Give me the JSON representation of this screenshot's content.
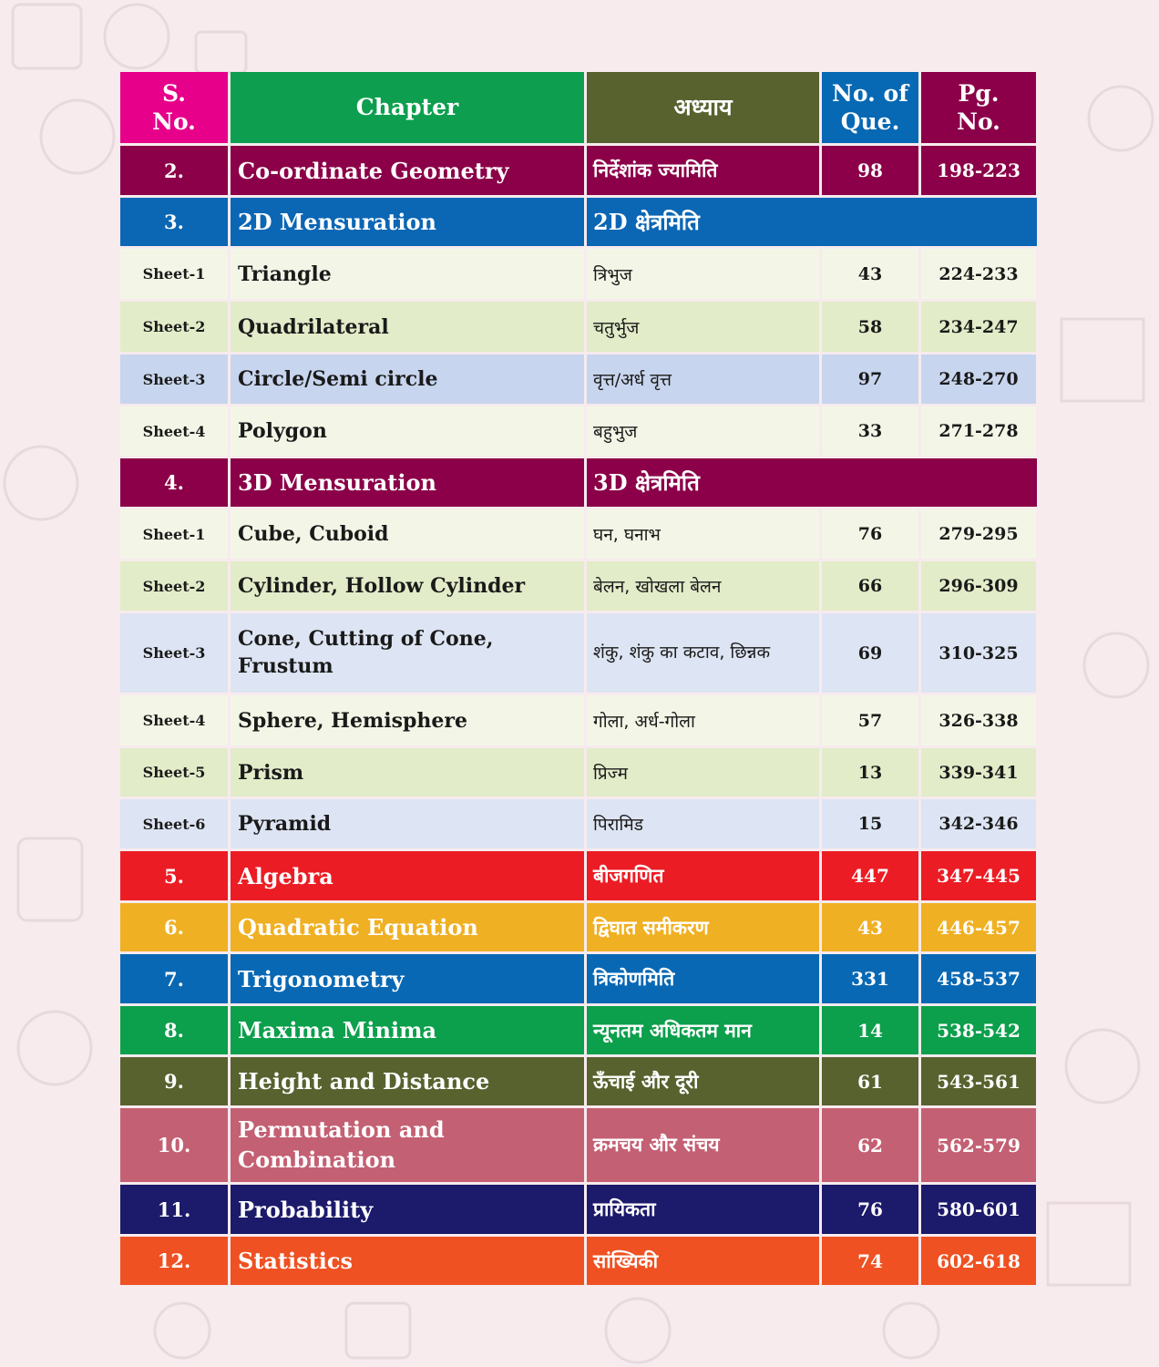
{
  "header": {
    "sno": "S. No.",
    "chapter": "Chapter",
    "hindi": "अध्याय",
    "questions": "No. of Que.",
    "page": "Pg. No."
  },
  "colors": {
    "header_sno": "#e6008a",
    "header_chapter": "#0d9f4f",
    "header_hindi": "#57622f",
    "header_que": "#0768b3",
    "header_pg": "#8b0048",
    "sheet_light": "#f3f6e6",
    "sheet_green": "#e2ecc9",
    "sheet_blue": "#c8d5ee",
    "sheet_lavender": "#dde4f3",
    "background": "#f7ebee"
  },
  "rows": [
    {
      "sno": "2.",
      "chapter": "Co-ordinate Geometry",
      "hindi": "निर्देशांक ज्यामिति",
      "que": "98",
      "pg": "198-223",
      "color": "#8b0048"
    },
    {
      "sno": "3.",
      "chapter": "2D Mensuration",
      "hindi": "2D क्षेत्रमिति",
      "color": "#0b66b4"
    },
    {
      "sno": "Sheet-1",
      "chapter": "Triangle",
      "hindi": "त्रिभुज",
      "que": "43",
      "pg": "224-233",
      "color": "#f3f6e6"
    },
    {
      "sno": "Sheet-2",
      "chapter": "Quadrilateral",
      "hindi": "चतुर्भुज",
      "que": "58",
      "pg": "234-247",
      "color": "#e2ecc9"
    },
    {
      "sno": "Sheet-3",
      "chapter": "Circle/Semi circle",
      "hindi": "वृत्त/अर्ध वृत्त",
      "que": "97",
      "pg": "248-270",
      "color": "#c8d5ee"
    },
    {
      "sno": "Sheet-4",
      "chapter": "Polygon",
      "hindi": "बहुभुज",
      "que": "33",
      "pg": "271-278",
      "color": "#f3f6e6"
    },
    {
      "sno": "4.",
      "chapter": "3D Mensuration",
      "hindi": "3D क्षेत्रमिति",
      "color": "#8b0048"
    },
    {
      "sno": "Sheet-1",
      "chapter": "Cube, Cuboid",
      "hindi": "घन, घनाभ",
      "que": "76",
      "pg": "279-295",
      "color": "#f3f6e6"
    },
    {
      "sno": "Sheet-2",
      "chapter": "Cylinder, Hollow Cylinder",
      "hindi": "बेलन, खोखला बेलन",
      "que": "66",
      "pg": "296-309",
      "color": "#e2ecc9"
    },
    {
      "sno": "Sheet-3",
      "chapter": "Cone, Cutting of Cone, Frustum",
      "hindi": "शंकु, शंकु का कटाव, छिन्नक",
      "que": "69",
      "pg": "310-325",
      "color": "#dde4f3"
    },
    {
      "sno": "Sheet-4",
      "chapter": "Sphere, Hemisphere",
      "hindi": "गोला, अर्ध-गोला",
      "que": "57",
      "pg": "326-338",
      "color": "#f3f6e6"
    },
    {
      "sno": "Sheet-5",
      "chapter": "Prism",
      "hindi": "प्रिज्म",
      "que": "13",
      "pg": "339-341",
      "color": "#e2ecc9"
    },
    {
      "sno": "Sheet-6",
      "chapter": "Pyramid",
      "hindi": "पिरामिड",
      "que": "15",
      "pg": "342-346",
      "color": "#dde4f3"
    },
    {
      "sno": "5.",
      "chapter": "Algebra",
      "hindi": "बीजगणित",
      "que": "447",
      "pg": "347-445",
      "color": "#ec1c24"
    },
    {
      "sno": "6.",
      "chapter": "Quadratic Equation",
      "hindi": "द्विघात समीकरण",
      "que": "43",
      "pg": "446-457",
      "color": "#f0b023"
    },
    {
      "sno": "7.",
      "chapter": "Trigonometry",
      "hindi": "त्रिकोणमिति",
      "que": "331",
      "pg": "458-537",
      "color": "#0868b4"
    },
    {
      "sno": "8.",
      "chapter": "Maxima Minima",
      "hindi": "न्यूनतम अधिकतम मान",
      "que": "14",
      "pg": "538-542",
      "color": "#0c9f4c"
    },
    {
      "sno": "9.",
      "chapter": "Height and Distance",
      "hindi": "ऊँचाई और दूरी",
      "que": "61",
      "pg": "543-561",
      "color": "#57622f"
    },
    {
      "sno": "10.",
      "chapter": "Permutation and Combination",
      "hindi": "क्रमचय और संचय",
      "que": "62",
      "pg": "562-579",
      "color": "#c46073"
    },
    {
      "sno": "11.",
      "chapter": "Probability",
      "hindi": "प्रायिकता",
      "que": "76",
      "pg": "580-601",
      "color": "#1c1a6a"
    },
    {
      "sno": "12.",
      "chapter": "Statistics",
      "hindi": "सांख्यिकी",
      "que": "74",
      "pg": "602-618",
      "color": "#ef5122"
    }
  ]
}
